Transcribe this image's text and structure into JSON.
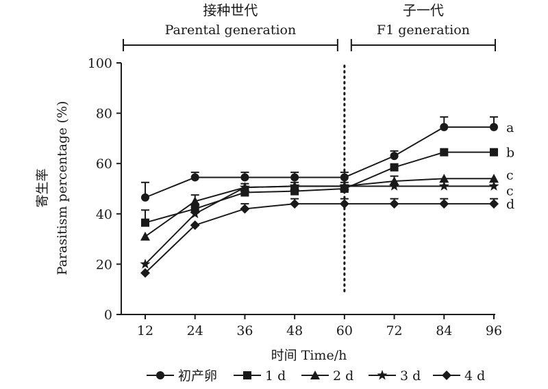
{
  "chart_data": {
    "type": "line",
    "xlabel": "时间 Time/h",
    "ylabel_cn": "寄生率",
    "ylabel": "Parasitism percentage (%)",
    "ylim": [
      0,
      100
    ],
    "yticks": [
      "0",
      "20",
      "40",
      "60",
      "80",
      "100"
    ],
    "x": [
      12,
      24,
      36,
      48,
      60,
      72,
      84,
      96
    ],
    "xticks": [
      "12",
      "24",
      "36",
      "48",
      "60",
      "72",
      "84",
      "96"
    ],
    "divider_x": 60,
    "periods": [
      {
        "title_cn": "接种世代",
        "title_en": "Parental generation",
        "from": 12,
        "to": 60
      },
      {
        "title_cn": "子一代",
        "title_en": "F1 generation",
        "from": 60,
        "to": 96
      }
    ],
    "series": [
      {
        "name": "初产卵",
        "marker": "circle",
        "values": [
          46.5,
          54.5,
          54.5,
          54.5,
          54.5,
          63.0,
          74.5,
          74.5
        ],
        "errors": [
          6.0,
          2.0,
          2.0,
          2.0,
          2.0,
          2.0,
          4.0,
          4.0
        ],
        "letter": "a"
      },
      {
        "name": "1 d",
        "marker": "square",
        "values": [
          36.5,
          42.0,
          48.5,
          49.0,
          50.0,
          58.5,
          64.5,
          64.5
        ],
        "errors": [
          5.0,
          2.0,
          1.5,
          1.5,
          1.5,
          0,
          0,
          0
        ],
        "letter": "b"
      },
      {
        "name": "2 d",
        "marker": "triangle",
        "values": [
          31.0,
          45.0,
          50.5,
          51.0,
          51.0,
          53.0,
          54.0,
          54.0
        ],
        "errors": [
          0,
          2.5,
          1.5,
          1.5,
          1.5,
          2.0,
          0,
          0
        ],
        "letter": "c"
      },
      {
        "name": "3 d",
        "marker": "star",
        "values": [
          20.0,
          40.0,
          50.5,
          51.0,
          51.0,
          51.0,
          51.0,
          51.0
        ],
        "errors": [
          0,
          0,
          0,
          0,
          0,
          0,
          0,
          0
        ],
        "letter": "c"
      },
      {
        "name": "4 d",
        "marker": "diamond",
        "values": [
          16.5,
          35.5,
          42.0,
          44.0,
          44.0,
          44.0,
          44.0,
          44.0
        ],
        "errors": [
          0,
          0,
          2.0,
          2.0,
          2.0,
          2.0,
          2.0,
          2.0
        ],
        "letter": "d"
      }
    ],
    "grid": false,
    "legend_position": "bottom"
  }
}
